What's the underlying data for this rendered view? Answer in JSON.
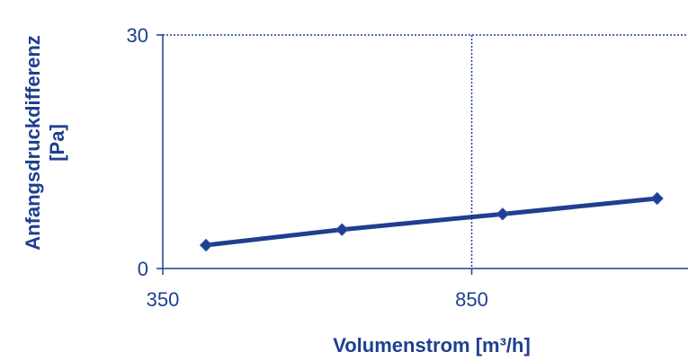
{
  "colors": {
    "series": "#1F3F8F",
    "axis": "#1F3F8F",
    "grid": "#1F3F8F",
    "background": "#ffffff"
  },
  "chart_data": {
    "type": "line",
    "title": "",
    "xlabel": "Volumenstrom [m³/h]",
    "ylabel_lines": [
      "Anfangsdruckdifferenz",
      "[Pa]"
    ],
    "xlim": [
      350,
      1200
    ],
    "ylim": [
      0,
      30
    ],
    "x_ticks": [
      350,
      850
    ],
    "y_ticks": [
      0,
      30
    ],
    "x_tick_labels": [
      "350",
      "850"
    ],
    "y_tick_labels": [
      "0",
      "30"
    ],
    "grid": {
      "style": "dotted",
      "vertical_at": [
        850
      ],
      "horizontal_at": [
        30
      ]
    },
    "legend": "none",
    "series": [
      {
        "marker": "diamond",
        "x": [
          420,
          640,
          900,
          1150
        ],
        "y": [
          3.0,
          5.0,
          7.0,
          9.0
        ]
      }
    ]
  }
}
